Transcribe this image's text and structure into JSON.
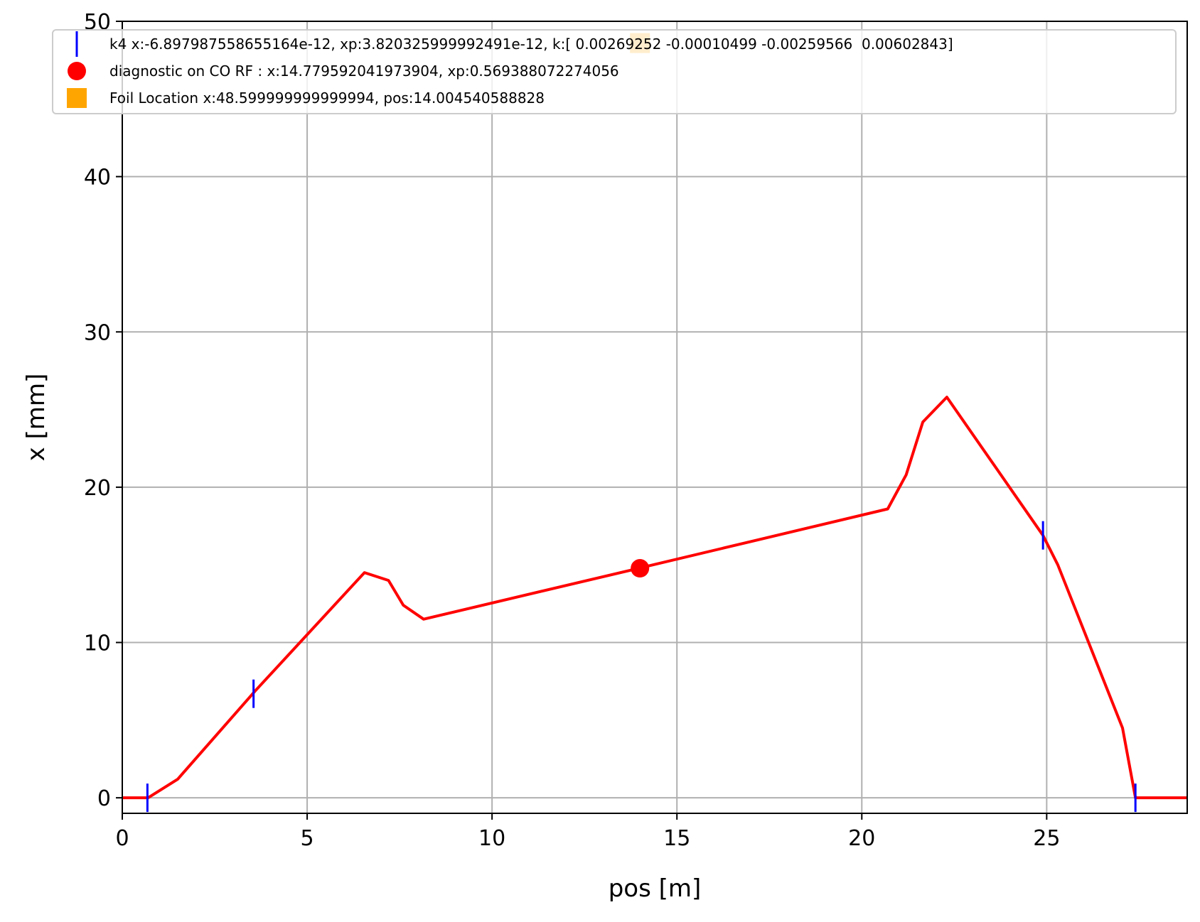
{
  "chart_data": {
    "type": "line",
    "title": "",
    "xlabel": "pos [m]",
    "ylabel": "x [mm]",
    "xlim": [
      0,
      28.8
    ],
    "ylim": [
      -1,
      50
    ],
    "grid": true,
    "legend_position": "top",
    "x_ticks": [
      0,
      5,
      10,
      15,
      20,
      25
    ],
    "y_ticks": [
      0,
      10,
      20,
      30,
      40,
      50
    ],
    "colors": {
      "orbit": "#ff0000",
      "k4": "#0000ff",
      "diagnostic": "#ff0000",
      "foil": "#ffa500",
      "grid": "#b0b0b0"
    },
    "series": [
      {
        "kind": "line",
        "color": "#ff0000",
        "x": [
          0,
          0.7,
          1.5,
          3.6,
          6.55,
          7.2,
          7.6,
          8.15,
          14.0,
          20.7,
          21.2,
          21.65,
          22.3,
          24.9,
          25.3,
          27.05,
          27.4,
          28.8
        ],
        "y": [
          0,
          0,
          1.2,
          6.9,
          14.5,
          14.0,
          12.4,
          11.5,
          14.8,
          18.6,
          20.8,
          24.2,
          25.8,
          16.9,
          15.0,
          4.5,
          0,
          0
        ]
      }
    ],
    "markers": [
      {
        "legend": "k4 x:-6.897987558655164e-12, xp:3.820325999992491e-12, k:[ 0.00269252 -0.00010499 -0.00259566  0.00602843]",
        "shape": "vline",
        "color": "#0000ff",
        "points": [
          [
            0.68,
            0
          ],
          [
            3.55,
            6.7
          ],
          [
            24.9,
            16.9
          ],
          [
            27.4,
            0
          ]
        ]
      },
      {
        "legend": "diagnostic on CO RF : x:14.779592041973904, xp:0.569388072274056",
        "shape": "circle",
        "color": "#ff0000",
        "points": [
          [
            14.0,
            14.78
          ]
        ]
      },
      {
        "legend": "Foil Location x:48.599999999999994, pos:14.004540588828",
        "shape": "square",
        "color": "#ffa500",
        "points": [
          [
            14.0,
            48.6
          ]
        ]
      }
    ]
  }
}
